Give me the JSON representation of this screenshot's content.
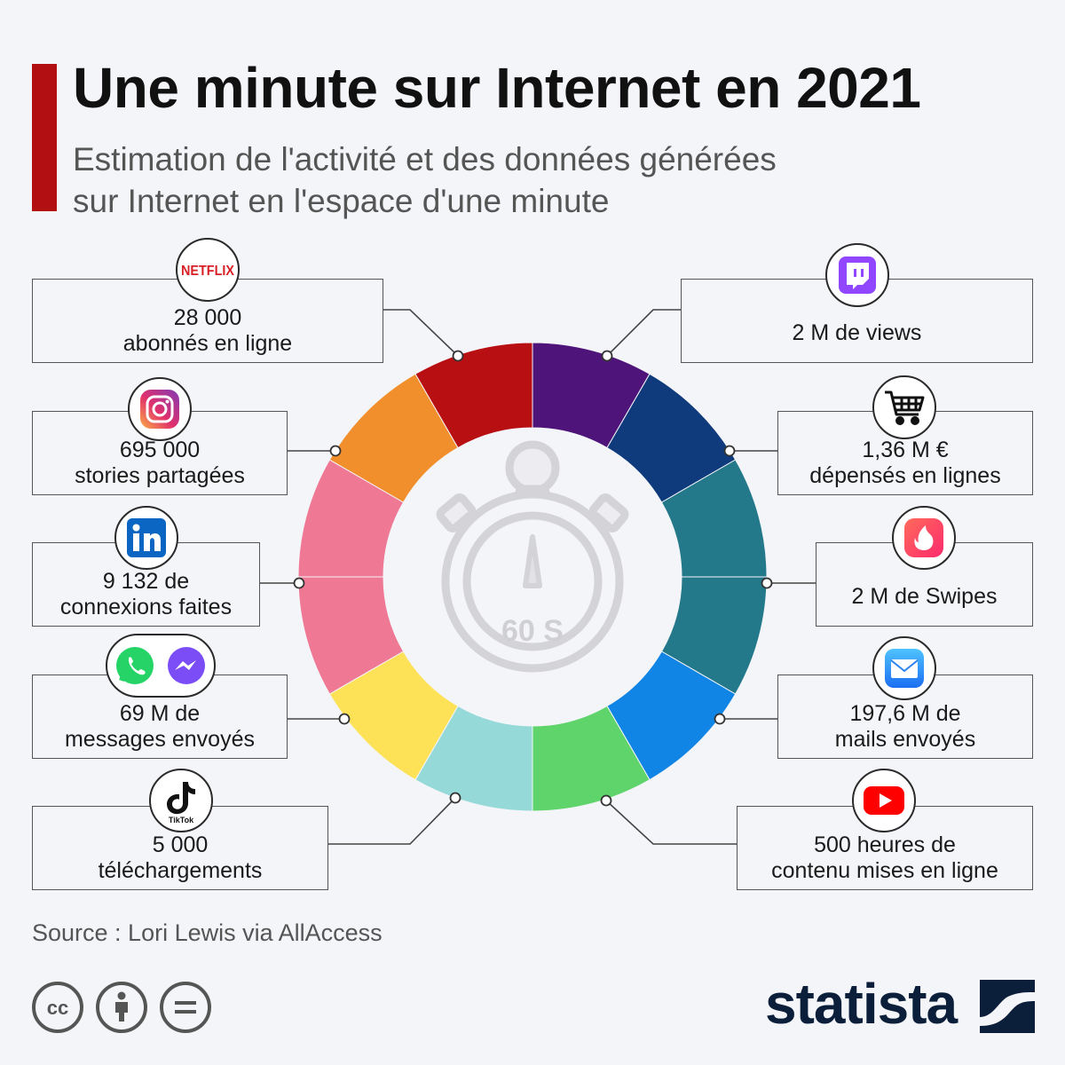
{
  "header": {
    "title": "Une minute sur Internet en 2021",
    "subtitle_line1": "Estimation de l'activité et des données générées",
    "subtitle_line2": "sur Internet en l'espace d'une minute"
  },
  "center": {
    "timer_label": "60 S"
  },
  "ring_segment_count": 12,
  "items": [
    {
      "id": "netflix",
      "icon": "netflix-logo",
      "line1": "28 000",
      "line2": "abonnés en ligne",
      "color": "#b70f12"
    },
    {
      "id": "instagram",
      "icon": "instagram-icon",
      "line1": "695 000",
      "line2": "stories partagées",
      "color": "#f18f2c"
    },
    {
      "id": "linkedin",
      "icon": "linkedin-icon",
      "line1": "9 132 de",
      "line2": "connexions faites",
      "color": "#ef7895"
    },
    {
      "id": "messaging",
      "icon": "whatsapp-messenger-icons",
      "line1": "69 M de",
      "line2": "messages envoyés",
      "color": "#fde157"
    },
    {
      "id": "tiktok",
      "icon": "tiktok-icon",
      "icon_text": "TikTok",
      "line1": "5 000",
      "line2": "téléchargements",
      "color": "#96d9d9"
    },
    {
      "id": "twitch",
      "icon": "twitch-icon",
      "line1": "2 M de views",
      "line2": "",
      "color": "#4e1479"
    },
    {
      "id": "shopping",
      "icon": "cart-icon",
      "line1": "1,36 M €",
      "line2": "dépensés en lignes",
      "color": "#0f3a7c"
    },
    {
      "id": "tinder",
      "icon": "tinder-icon",
      "line1": "2 M de Swipes",
      "line2": "",
      "color": "#23788a"
    },
    {
      "id": "mail",
      "icon": "mail-icon",
      "line1": "197,6 M de",
      "line2": "mails envoyés",
      "color": "#1185e5"
    },
    {
      "id": "youtube",
      "icon": "youtube-icon",
      "line1": "500 heures de",
      "line2": "contenu mises en ligne",
      "color": "#5ed46b"
    }
  ],
  "footer": {
    "source": "Source : Lori Lewis via AllAccess",
    "brand": "statista",
    "license_icons": [
      "cc-icon",
      "by-icon",
      "nd-icon"
    ]
  }
}
